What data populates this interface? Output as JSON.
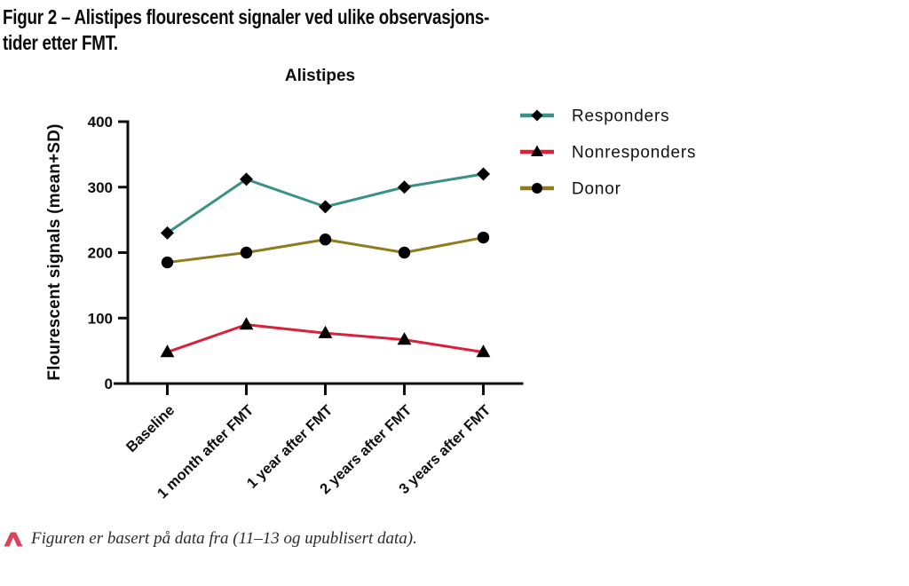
{
  "page": {
    "figure_title_line1": "Figur 2 – Alistipes flourescent signaler ved ulike observasjons-",
    "figure_title_line2": "tider etter FMT.",
    "footnote": {
      "icon": "caret-icon",
      "icon_color": "#D84458",
      "text": "Figuren er basert på data fra (11–13 og upublisert data)."
    }
  },
  "colors": {
    "axis": "#0d0d0d",
    "marker": "#000000",
    "responders": "#3A9186",
    "nonresponders": "#DB2039",
    "donor": "#8E7B1D"
  },
  "chart_data": {
    "type": "line",
    "title": "Alistipes",
    "xlabel": "",
    "ylabel": "Flourescent signals (mean+SD)",
    "ylim": [
      0,
      400
    ],
    "yticks": [
      0,
      100,
      200,
      300,
      400
    ],
    "grid": false,
    "legend_position": "right",
    "categories": [
      "Baseline",
      "1 month after FMT",
      "1 year after FMT",
      "2 years after FMT",
      "3 years after FMT"
    ],
    "series": [
      {
        "name": "Responders",
        "marker": "diamond",
        "color": "#3A9186",
        "values": [
          230,
          312,
          270,
          300,
          320
        ]
      },
      {
        "name": "Nonresponders",
        "marker": "triangle",
        "color": "#DB2039",
        "values": [
          48,
          90,
          77,
          67,
          48
        ]
      },
      {
        "name": "Donor",
        "marker": "circle",
        "color": "#8E7B1D",
        "values": [
          185,
          200,
          220,
          200,
          223
        ]
      }
    ]
  }
}
